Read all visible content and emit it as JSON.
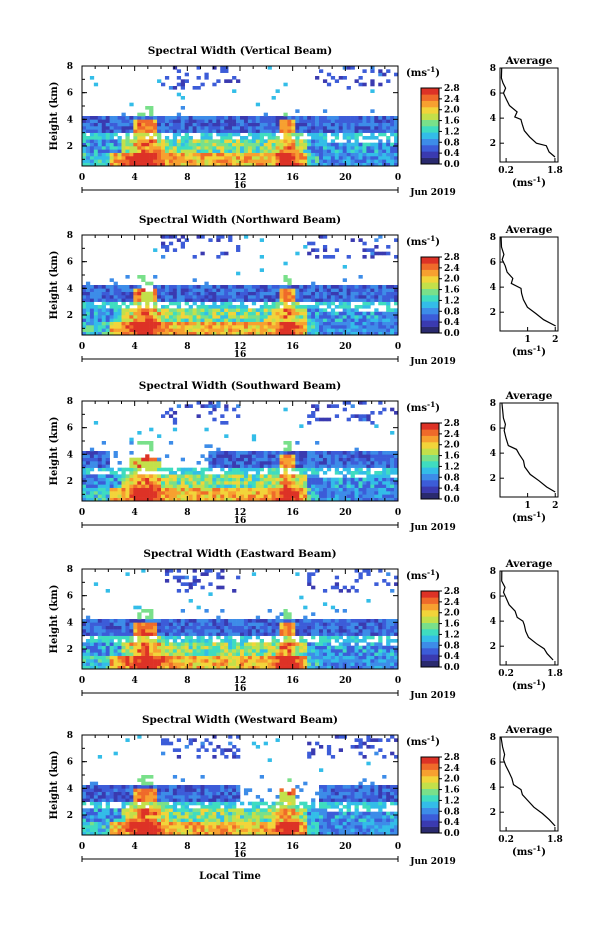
{
  "x_axis": {
    "tick_labels": [
      "0",
      "4",
      "8",
      "12",
      "16",
      "20",
      "0"
    ],
    "date_day": "16",
    "date_month": "Jun 2019",
    "label": "Local Time"
  },
  "height_axis": {
    "label": "Height (km)",
    "tick_labels": [
      "2",
      "4",
      "6",
      "8"
    ]
  },
  "colorbar": {
    "unit_prefix": "(ms",
    "unit_exp": "-1",
    "unit_suffix": ")"
  },
  "profile": {
    "title": "Average",
    "unit_prefix": "(ms",
    "unit_exp": "-1",
    "unit_suffix": ")"
  },
  "palette": [
    "#2a2a6e",
    "#3a3ab0",
    "#3c5cd8",
    "#3d8ce8",
    "#33bde8",
    "#3fdcc0",
    "#79e08a",
    "#c3e04a",
    "#f2d43a",
    "#f7a030",
    "#ef6a2a",
    "#dd3226"
  ],
  "chart_data": [
    {
      "type": "heatmap",
      "title": "Spectral Width (Vertical Beam)",
      "xlim": [
        0,
        24
      ],
      "ylim": [
        0.5,
        8
      ],
      "colorbar_range": [
        0,
        2.8
      ],
      "colorbar_ticks": [
        "0.0",
        "0.4",
        "0.8",
        "1.2",
        "1.6",
        "2.0",
        "2.4",
        "2.8"
      ],
      "profile_x_ticks": [
        "0.2",
        "1.8"
      ],
      "profile_xlim": [
        0,
        1.9
      ],
      "profile": [
        [
          0.9,
          1.8
        ],
        [
          1.3,
          1.6
        ],
        [
          1.8,
          1.5
        ],
        [
          2.0,
          1.2
        ],
        [
          2.5,
          0.95
        ],
        [
          3.0,
          0.8
        ],
        [
          3.5,
          0.72
        ],
        [
          3.9,
          0.7
        ],
        [
          4.1,
          0.5
        ],
        [
          4.5,
          0.55
        ],
        [
          5.0,
          0.3
        ],
        [
          5.5,
          0.22
        ],
        [
          6.0,
          0.12
        ],
        [
          6.4,
          0.18
        ],
        [
          6.8,
          0.1
        ],
        [
          7.2,
          0.06
        ],
        [
          8.0,
          0.04
        ]
      ]
    },
    {
      "type": "heatmap",
      "title": "Spectral Width (Northward Beam)",
      "xlim": [
        0,
        24
      ],
      "ylim": [
        0.5,
        8
      ],
      "colorbar_range": [
        0,
        2.8
      ],
      "colorbar_ticks": [
        "0.0",
        "0.4",
        "0.8",
        "1.2",
        "1.6",
        "2.0",
        "2.4",
        "2.8"
      ],
      "profile_x_ticks": [
        "1",
        "2"
      ],
      "profile_xlim": [
        0,
        2.1
      ],
      "profile": [
        [
          0.9,
          2.0
        ],
        [
          1.4,
          1.6
        ],
        [
          1.9,
          1.3
        ],
        [
          2.4,
          1.0
        ],
        [
          3.0,
          0.85
        ],
        [
          3.5,
          0.8
        ],
        [
          3.9,
          0.75
        ],
        [
          4.3,
          0.4
        ],
        [
          4.7,
          0.45
        ],
        [
          5.2,
          0.25
        ],
        [
          5.7,
          0.18
        ],
        [
          6.2,
          0.1
        ],
        [
          6.6,
          0.15
        ],
        [
          7.2,
          0.06
        ],
        [
          8.0,
          0.05
        ]
      ]
    },
    {
      "type": "heatmap",
      "title": "Spectral Width (Southward Beam)",
      "xlim": [
        0,
        24
      ],
      "ylim": [
        0.5,
        8
      ],
      "colorbar_range": [
        0,
        2.8
      ],
      "colorbar_ticks": [
        "0.0",
        "0.4",
        "0.8",
        "1.2",
        "1.6",
        "2.0",
        "2.4",
        "2.8"
      ],
      "profile_x_ticks": [
        "1",
        "2"
      ],
      "profile_xlim": [
        0,
        2.1
      ],
      "profile": [
        [
          0.9,
          2.0
        ],
        [
          1.3,
          1.7
        ],
        [
          1.8,
          1.4
        ],
        [
          2.3,
          1.1
        ],
        [
          2.9,
          0.9
        ],
        [
          3.4,
          0.85
        ],
        [
          3.9,
          0.7
        ],
        [
          4.3,
          0.6
        ],
        [
          4.6,
          0.3
        ],
        [
          5.2,
          0.22
        ],
        [
          5.8,
          0.14
        ],
        [
          6.3,
          0.18
        ],
        [
          6.8,
          0.1
        ],
        [
          7.3,
          0.08
        ],
        [
          8.0,
          0.05
        ]
      ]
    },
    {
      "type": "heatmap",
      "title": "Spectral Width (Eastward Beam)",
      "xlim": [
        0,
        24
      ],
      "ylim": [
        0.5,
        8
      ],
      "colorbar_range": [
        0,
        2.8
      ],
      "colorbar_ticks": [
        "0.0",
        "0.4",
        "0.8",
        "1.2",
        "1.6",
        "2.0",
        "2.4",
        "2.8"
      ],
      "profile_x_ticks": [
        "0.2",
        "1.8"
      ],
      "profile_xlim": [
        0,
        1.9
      ],
      "profile": [
        [
          0.9,
          1.75
        ],
        [
          1.4,
          1.55
        ],
        [
          1.8,
          1.45
        ],
        [
          2.2,
          1.2
        ],
        [
          2.7,
          0.95
        ],
        [
          3.2,
          0.85
        ],
        [
          3.7,
          0.8
        ],
        [
          4.0,
          0.75
        ],
        [
          4.3,
          0.55
        ],
        [
          4.8,
          0.5
        ],
        [
          5.3,
          0.3
        ],
        [
          5.8,
          0.2
        ],
        [
          6.3,
          0.12
        ],
        [
          6.7,
          0.16
        ],
        [
          7.2,
          0.07
        ],
        [
          8.0,
          0.05
        ]
      ]
    },
    {
      "type": "heatmap",
      "title": "Spectral Width (Westward Beam)",
      "xlim": [
        0,
        24
      ],
      "ylim": [
        0.5,
        8
      ],
      "colorbar_range": [
        0,
        2.8
      ],
      "colorbar_ticks": [
        "0.0",
        "0.4",
        "0.8",
        "1.2",
        "1.6",
        "2.0",
        "2.4",
        "2.8"
      ],
      "profile_x_ticks": [
        "0.2",
        "1.8"
      ],
      "profile_xlim": [
        0,
        1.9
      ],
      "profile": [
        [
          0.9,
          1.8
        ],
        [
          1.4,
          1.6
        ],
        [
          1.9,
          1.4
        ],
        [
          2.4,
          1.1
        ],
        [
          2.9,
          0.9
        ],
        [
          3.4,
          0.75
        ],
        [
          3.8,
          0.7
        ],
        [
          4.2,
          0.45
        ],
        [
          4.7,
          0.4
        ],
        [
          5.2,
          0.28
        ],
        [
          5.7,
          0.2
        ],
        [
          6.2,
          0.12
        ],
        [
          6.6,
          0.16
        ],
        [
          7.2,
          0.07
        ],
        [
          8.0,
          0.05
        ]
      ]
    }
  ]
}
